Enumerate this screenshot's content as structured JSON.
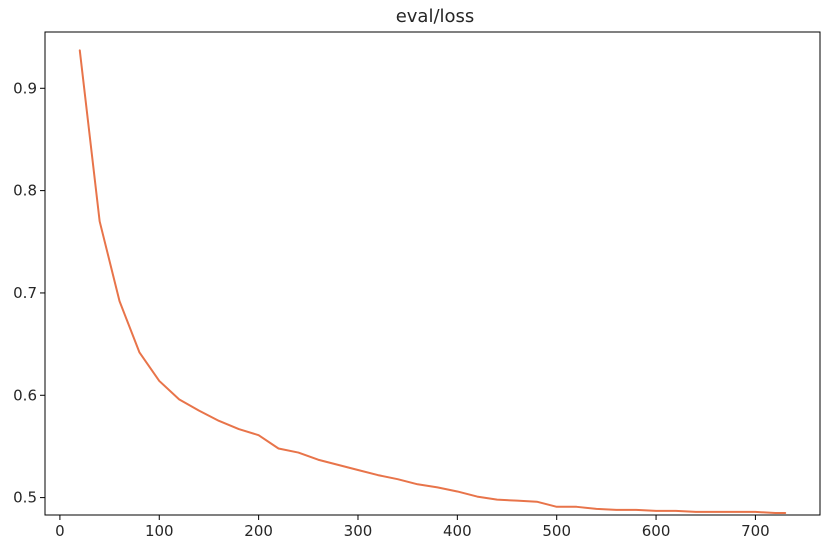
{
  "chart_data": {
    "type": "line",
    "title": "eval/loss",
    "xlabel": "",
    "ylabel": "",
    "xlim": [
      -15,
      765
    ],
    "ylim": [
      0.483,
      0.955
    ],
    "grid": false,
    "legend": "none",
    "xticks": [
      0,
      100,
      200,
      300,
      400,
      500,
      600,
      700
    ],
    "yticks": [
      0.5,
      0.6,
      0.7,
      0.8,
      0.9
    ],
    "series": [
      {
        "color": "#e8744a",
        "x": [
          20,
          40,
          60,
          80,
          100,
          120,
          140,
          160,
          180,
          200,
          220,
          240,
          260,
          280,
          300,
          320,
          340,
          360,
          380,
          400,
          420,
          440,
          460,
          480,
          500,
          520,
          540,
          560,
          580,
          600,
          620,
          640,
          660,
          680,
          700,
          720,
          730
        ],
        "y": [
          0.937,
          0.77,
          0.692,
          0.642,
          0.614,
          0.596,
          0.585,
          0.575,
          0.567,
          0.561,
          0.548,
          0.544,
          0.537,
          0.532,
          0.527,
          0.522,
          0.518,
          0.513,
          0.51,
          0.506,
          0.501,
          0.498,
          0.497,
          0.496,
          0.491,
          0.491,
          0.489,
          0.488,
          0.488,
          0.487,
          0.487,
          0.486,
          0.486,
          0.486,
          0.486,
          0.485,
          0.485
        ]
      }
    ]
  }
}
